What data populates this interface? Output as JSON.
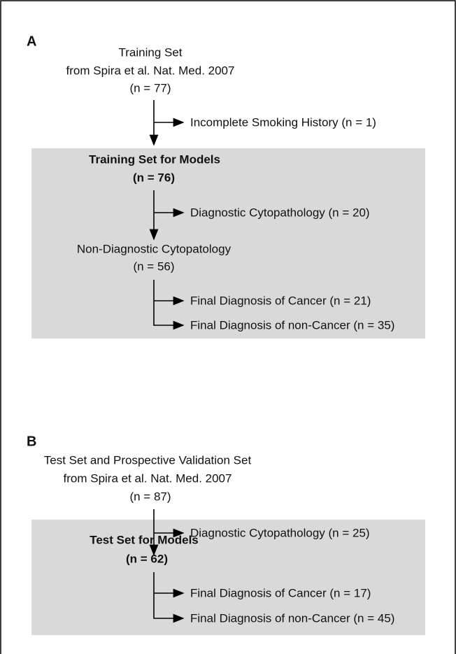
{
  "panel_a": {
    "label": "A",
    "source": [
      "Training Set",
      "from Spira et al. Nat. Med. 2007",
      "(n = 77)"
    ],
    "excluded": "Incomplete Smoking History (n = 1)",
    "box": {
      "title": "Training Set for Models",
      "count": "(n = 76)",
      "excluded": "Diagnostic Cytopathology (n = 20)",
      "subgroup": [
        "Non-Diagnostic Cytopatology",
        "(n = 56)"
      ],
      "outcomes": [
        "Final Diagnosis of Cancer (n = 21)",
        "Final Diagnosis of non-Cancer (n = 35)"
      ]
    }
  },
  "panel_b": {
    "label": "B",
    "source": [
      "Test Set and Prospective Validation Set",
      "from Spira et al. Nat. Med. 2007",
      "(n = 87)"
    ],
    "excluded": "Diagnostic Cytopathology (n = 25)",
    "box": {
      "title": "Test Set for Models",
      "count": "(n = 62)",
      "outcomes": [
        "Final Diagnosis of Cancer (n = 17)",
        "Final Diagnosis of non-Cancer (n = 45)"
      ]
    }
  }
}
